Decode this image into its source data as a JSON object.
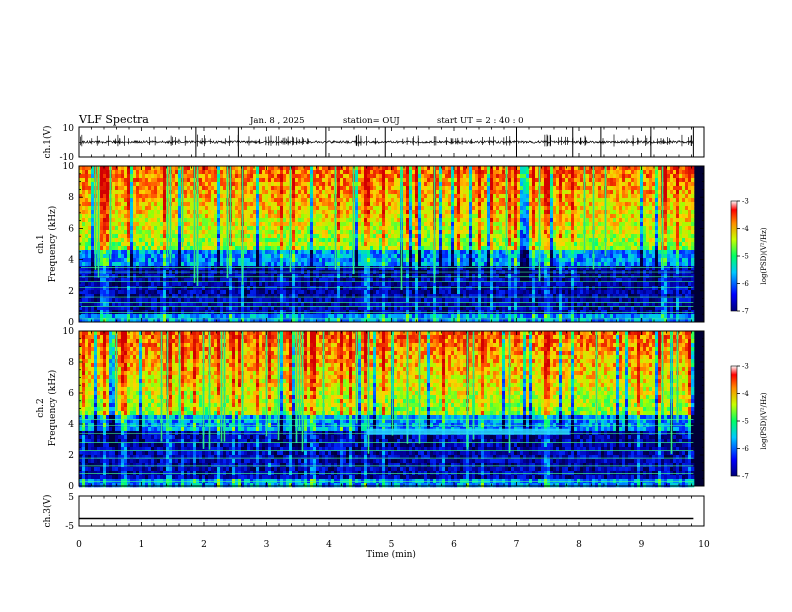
{
  "header": {
    "title": "VLF Spectra",
    "date": "Jan. 8 , 2025",
    "station": "station= OUJ",
    "start": "start  UT =   2 : 40 : 0"
  },
  "chart_data": [
    {
      "type": "line",
      "panel": "ch1-waveform",
      "ylabel": "ch.1(V)",
      "yticks": [
        "10",
        "-10"
      ],
      "ylim": [
        -10,
        10
      ],
      "xlim": [
        0,
        10
      ],
      "baseline": 0,
      "data_end_min": 9.83,
      "spike_times_min": [
        1.87,
        2.55,
        3.95,
        4.9,
        7.0,
        7.9,
        8.35,
        9.15,
        9.83
      ]
    },
    {
      "type": "heatmap",
      "panel": "ch1-spectrogram",
      "ylabel_line1": "ch.1",
      "ylabel_line2": "Frequency (kHz)",
      "yticks": [
        "0",
        "2",
        "4",
        "6",
        "8",
        "10"
      ],
      "ylim": [
        0,
        10
      ],
      "xlim": [
        0,
        10
      ],
      "data_end_min": 9.83,
      "tone_lines_khz": [
        0.2,
        0.6,
        1.0,
        1.25,
        1.6,
        2.2,
        2.6,
        2.9,
        3.2,
        3.5
      ],
      "colorbar": {
        "ticks": [
          "-3",
          "-4",
          "-5",
          "-6",
          "-7"
        ],
        "label": "log(PSD)(V²/Hz)",
        "range": [
          -7,
          -3
        ],
        "colormap": "rainbow"
      }
    },
    {
      "type": "heatmap",
      "panel": "ch2-spectrogram",
      "ylabel_line1": "ch.2",
      "ylabel_line2": "Frequency (kHz)",
      "yticks": [
        "0",
        "2",
        "4",
        "6",
        "8",
        "10"
      ],
      "ylim": [
        0,
        10
      ],
      "xlim": [
        0,
        10
      ],
      "data_end_min": 9.83,
      "tone_lines_khz": [
        0.3,
        0.8,
        1.3,
        1.8,
        2.3,
        2.8,
        3.4,
        3.9,
        4.3
      ],
      "feature": {
        "freq_khz": 3.5,
        "t_start_min": 4.6,
        "t_end_min": 7.85
      },
      "colorbar": {
        "ticks": [
          "-3",
          "-4",
          "-5",
          "-6",
          "-7"
        ],
        "label": "log(PSD)(V²/Hz)",
        "range": [
          -7,
          -3
        ],
        "colormap": "rainbow"
      }
    },
    {
      "type": "line",
      "panel": "ch3-waveform",
      "ylabel": "ch.3(V)",
      "yticks": [
        "5",
        "-5"
      ],
      "ylim": [
        -5,
        5
      ],
      "xlim": [
        0,
        10
      ],
      "baseline": -2.5,
      "data_end_min": 9.83,
      "xlabel": "Time (min)",
      "xticks": [
        "0",
        "1",
        "2",
        "3",
        "4",
        "5",
        "6",
        "7",
        "8",
        "9",
        "10"
      ]
    }
  ]
}
